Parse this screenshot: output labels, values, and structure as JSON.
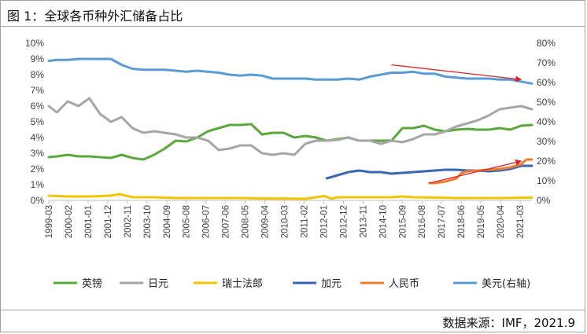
{
  "title": "图 1：全球各币种外汇储备占比",
  "source": "数据来源：IMF，2021.9",
  "colors": {
    "gbp": "#5aa73c",
    "jpy": "#a6a6a6",
    "chf": "#f5c400",
    "cad": "#3a66b5",
    "cny": "#ef7d31",
    "usd": "#5b9bd5",
    "arrow": "#d62728"
  },
  "chart_data": {
    "type": "line",
    "y_left": {
      "range": [
        0,
        10
      ],
      "ticks": [
        "0%",
        "1%",
        "2%",
        "3%",
        "4%",
        "5%",
        "6%",
        "7%",
        "8%",
        "9%",
        "10%"
      ]
    },
    "y_right": {
      "range": [
        0,
        80
      ],
      "ticks": [
        "0%",
        "10%",
        "20%",
        "30%",
        "40%",
        "50%",
        "60%",
        "70%",
        "80%"
      ]
    },
    "x_range": [
      1999.125,
      2021.5
    ],
    "x_tick_labels": [
      "1999-03",
      "2000-02",
      "2001-01",
      "2001-12",
      "2002-11",
      "2003-10",
      "2004-09",
      "2005-08",
      "2006-07",
      "2007-06",
      "2008-05",
      "2009-04",
      "2010-03",
      "2011-02",
      "2012-01",
      "2012-12",
      "2013-11",
      "2014-10",
      "2015-09",
      "2016-08",
      "2017-07",
      "2018-06",
      "2019-05",
      "2020-04",
      "2021-03"
    ],
    "series": [
      {
        "name": "英镑",
        "axis": "left",
        "color_key": "gbp",
        "x": [
          1999.125,
          1999.5,
          2000.0,
          2000.5,
          2001.0,
          2001.5,
          2002.0,
          2002.5,
          2003.0,
          2003.5,
          2004.0,
          2004.5,
          2005.0,
          2005.5,
          2006.0,
          2006.5,
          2007.0,
          2007.5,
          2008.0,
          2008.5,
          2009.0,
          2009.5,
          2010.0,
          2010.5,
          2011.0,
          2011.5,
          2012.0,
          2012.5,
          2013.0,
          2013.5,
          2014.0,
          2014.5,
          2015.0,
          2015.5,
          2016.0,
          2016.5,
          2017.0,
          2017.5,
          2018.0,
          2018.5,
          2019.0,
          2019.5,
          2020.0,
          2020.5,
          2021.0,
          2021.5
        ],
        "y": [
          2.75,
          2.8,
          2.9,
          2.8,
          2.8,
          2.75,
          2.7,
          2.9,
          2.7,
          2.6,
          2.9,
          3.3,
          3.8,
          3.75,
          4.0,
          4.4,
          4.6,
          4.8,
          4.8,
          4.85,
          4.2,
          4.3,
          4.3,
          4.0,
          4.1,
          4.0,
          3.8,
          3.9,
          4.0,
          3.8,
          3.8,
          3.8,
          3.8,
          4.6,
          4.6,
          4.75,
          4.5,
          4.4,
          4.5,
          4.55,
          4.5,
          4.5,
          4.6,
          4.5,
          4.75,
          4.8
        ]
      },
      {
        "name": "日元",
        "axis": "left",
        "color_key": "jpy",
        "x": [
          1999.125,
          1999.5,
          2000.0,
          2000.5,
          2001.0,
          2001.5,
          2002.0,
          2002.5,
          2003.0,
          2003.5,
          2004.0,
          2004.5,
          2005.0,
          2005.5,
          2006.0,
          2006.5,
          2007.0,
          2007.5,
          2008.0,
          2008.5,
          2009.0,
          2009.5,
          2010.0,
          2010.5,
          2011.0,
          2011.5,
          2012.0,
          2012.5,
          2013.0,
          2013.5,
          2014.0,
          2014.5,
          2015.0,
          2015.5,
          2016.0,
          2016.5,
          2017.0,
          2017.5,
          2018.0,
          2018.5,
          2019.0,
          2019.5,
          2020.0,
          2020.5,
          2021.0,
          2021.5
        ],
        "y": [
          6.0,
          5.6,
          6.3,
          6.0,
          6.5,
          5.5,
          5.0,
          5.3,
          4.6,
          4.3,
          4.4,
          4.3,
          4.2,
          4.0,
          4.0,
          3.8,
          3.2,
          3.3,
          3.5,
          3.5,
          3.0,
          2.9,
          3.0,
          2.9,
          3.6,
          3.8,
          3.8,
          3.85,
          4.0,
          3.8,
          3.8,
          3.6,
          3.8,
          3.7,
          3.9,
          4.2,
          4.2,
          4.4,
          4.7,
          4.9,
          5.1,
          5.4,
          5.8,
          5.9,
          6.0,
          5.8
        ]
      },
      {
        "name": "瑞士法郎",
        "axis": "left",
        "color_key": "chf",
        "x": [
          1999.125,
          2000.0,
          2001.0,
          2002.0,
          2002.4,
          2003.0,
          2004.0,
          2005.0,
          2006.0,
          2007.0,
          2008.0,
          2009.0,
          2010.0,
          2011.0,
          2011.9,
          2012.2,
          2012.5,
          2013.0,
          2014.0,
          2015.0,
          2015.5,
          2016.0,
          2017.0,
          2018.0,
          2019.0,
          2020.0,
          2021.0,
          2021.5
        ],
        "y": [
          0.3,
          0.25,
          0.25,
          0.3,
          0.4,
          0.2,
          0.2,
          0.15,
          0.15,
          0.15,
          0.15,
          0.12,
          0.12,
          0.1,
          0.28,
          0.1,
          0.2,
          0.2,
          0.2,
          0.2,
          0.25,
          0.2,
          0.18,
          0.15,
          0.15,
          0.15,
          0.17,
          0.18
        ]
      },
      {
        "name": "加元",
        "axis": "left",
        "color_key": "cad",
        "x": [
          2012.0,
          2012.5,
          2013.0,
          2013.5,
          2014.0,
          2014.5,
          2015.0,
          2015.5,
          2016.0,
          2016.5,
          2017.0,
          2017.5,
          2018.0,
          2018.5,
          2019.0,
          2019.5,
          2020.0,
          2020.5,
          2021.0,
          2021.5
        ],
        "y": [
          1.4,
          1.6,
          1.8,
          1.9,
          1.8,
          1.8,
          1.7,
          1.75,
          1.8,
          1.85,
          1.9,
          1.95,
          1.95,
          1.9,
          1.9,
          1.85,
          1.9,
          2.0,
          2.2,
          2.2
        ]
      },
      {
        "name": "人民币",
        "axis": "left",
        "color_key": "cny",
        "x": [
          2016.75,
          2017.0,
          2017.5,
          2018.0,
          2018.25,
          2018.5,
          2019.0,
          2019.5,
          2020.0,
          2020.5,
          2021.0,
          2021.25,
          2021.5
        ],
        "y": [
          1.1,
          1.1,
          1.2,
          1.4,
          1.75,
          1.85,
          1.9,
          1.95,
          2.0,
          2.1,
          2.3,
          2.6,
          2.6
        ]
      },
      {
        "name": "美元(右轴)",
        "axis": "right",
        "color_key": "usd",
        "x": [
          1999.125,
          1999.5,
          2000.0,
          2000.5,
          2001.0,
          2001.5,
          2002.0,
          2002.5,
          2003.0,
          2003.5,
          2004.0,
          2004.5,
          2005.0,
          2005.5,
          2006.0,
          2006.5,
          2007.0,
          2007.5,
          2008.0,
          2008.5,
          2009.0,
          2009.5,
          2010.0,
          2010.5,
          2011.0,
          2011.5,
          2012.0,
          2012.5,
          2013.0,
          2013.5,
          2014.0,
          2014.5,
          2015.0,
          2015.5,
          2016.0,
          2016.5,
          2017.0,
          2017.5,
          2018.0,
          2018.5,
          2019.0,
          2019.5,
          2020.0,
          2020.5,
          2021.0,
          2021.5
        ],
        "y": [
          71,
          71.5,
          71.5,
          72,
          72,
          72,
          72,
          69,
          67,
          66.5,
          66.5,
          66.5,
          66,
          65.5,
          66,
          65.5,
          65,
          64,
          63.5,
          64,
          63.5,
          62,
          62,
          62,
          62,
          61.5,
          61.5,
          61.5,
          62,
          61.5,
          63,
          64,
          65,
          65,
          65.5,
          64.5,
          64.5,
          63,
          62.5,
          62,
          62,
          62,
          61.5,
          61.5,
          60.5,
          59.5
        ]
      }
    ],
    "annotations": [
      {
        "type": "arrow",
        "color_key": "arrow",
        "from": [
          2015.0,
          69
        ],
        "to": [
          2021.0,
          61.5
        ],
        "axis": "right"
      },
      {
        "type": "arrow",
        "color_key": "arrow",
        "from": [
          2016.75,
          1.1
        ],
        "to": [
          2021.0,
          2.5
        ],
        "axis": "left"
      }
    ]
  }
}
